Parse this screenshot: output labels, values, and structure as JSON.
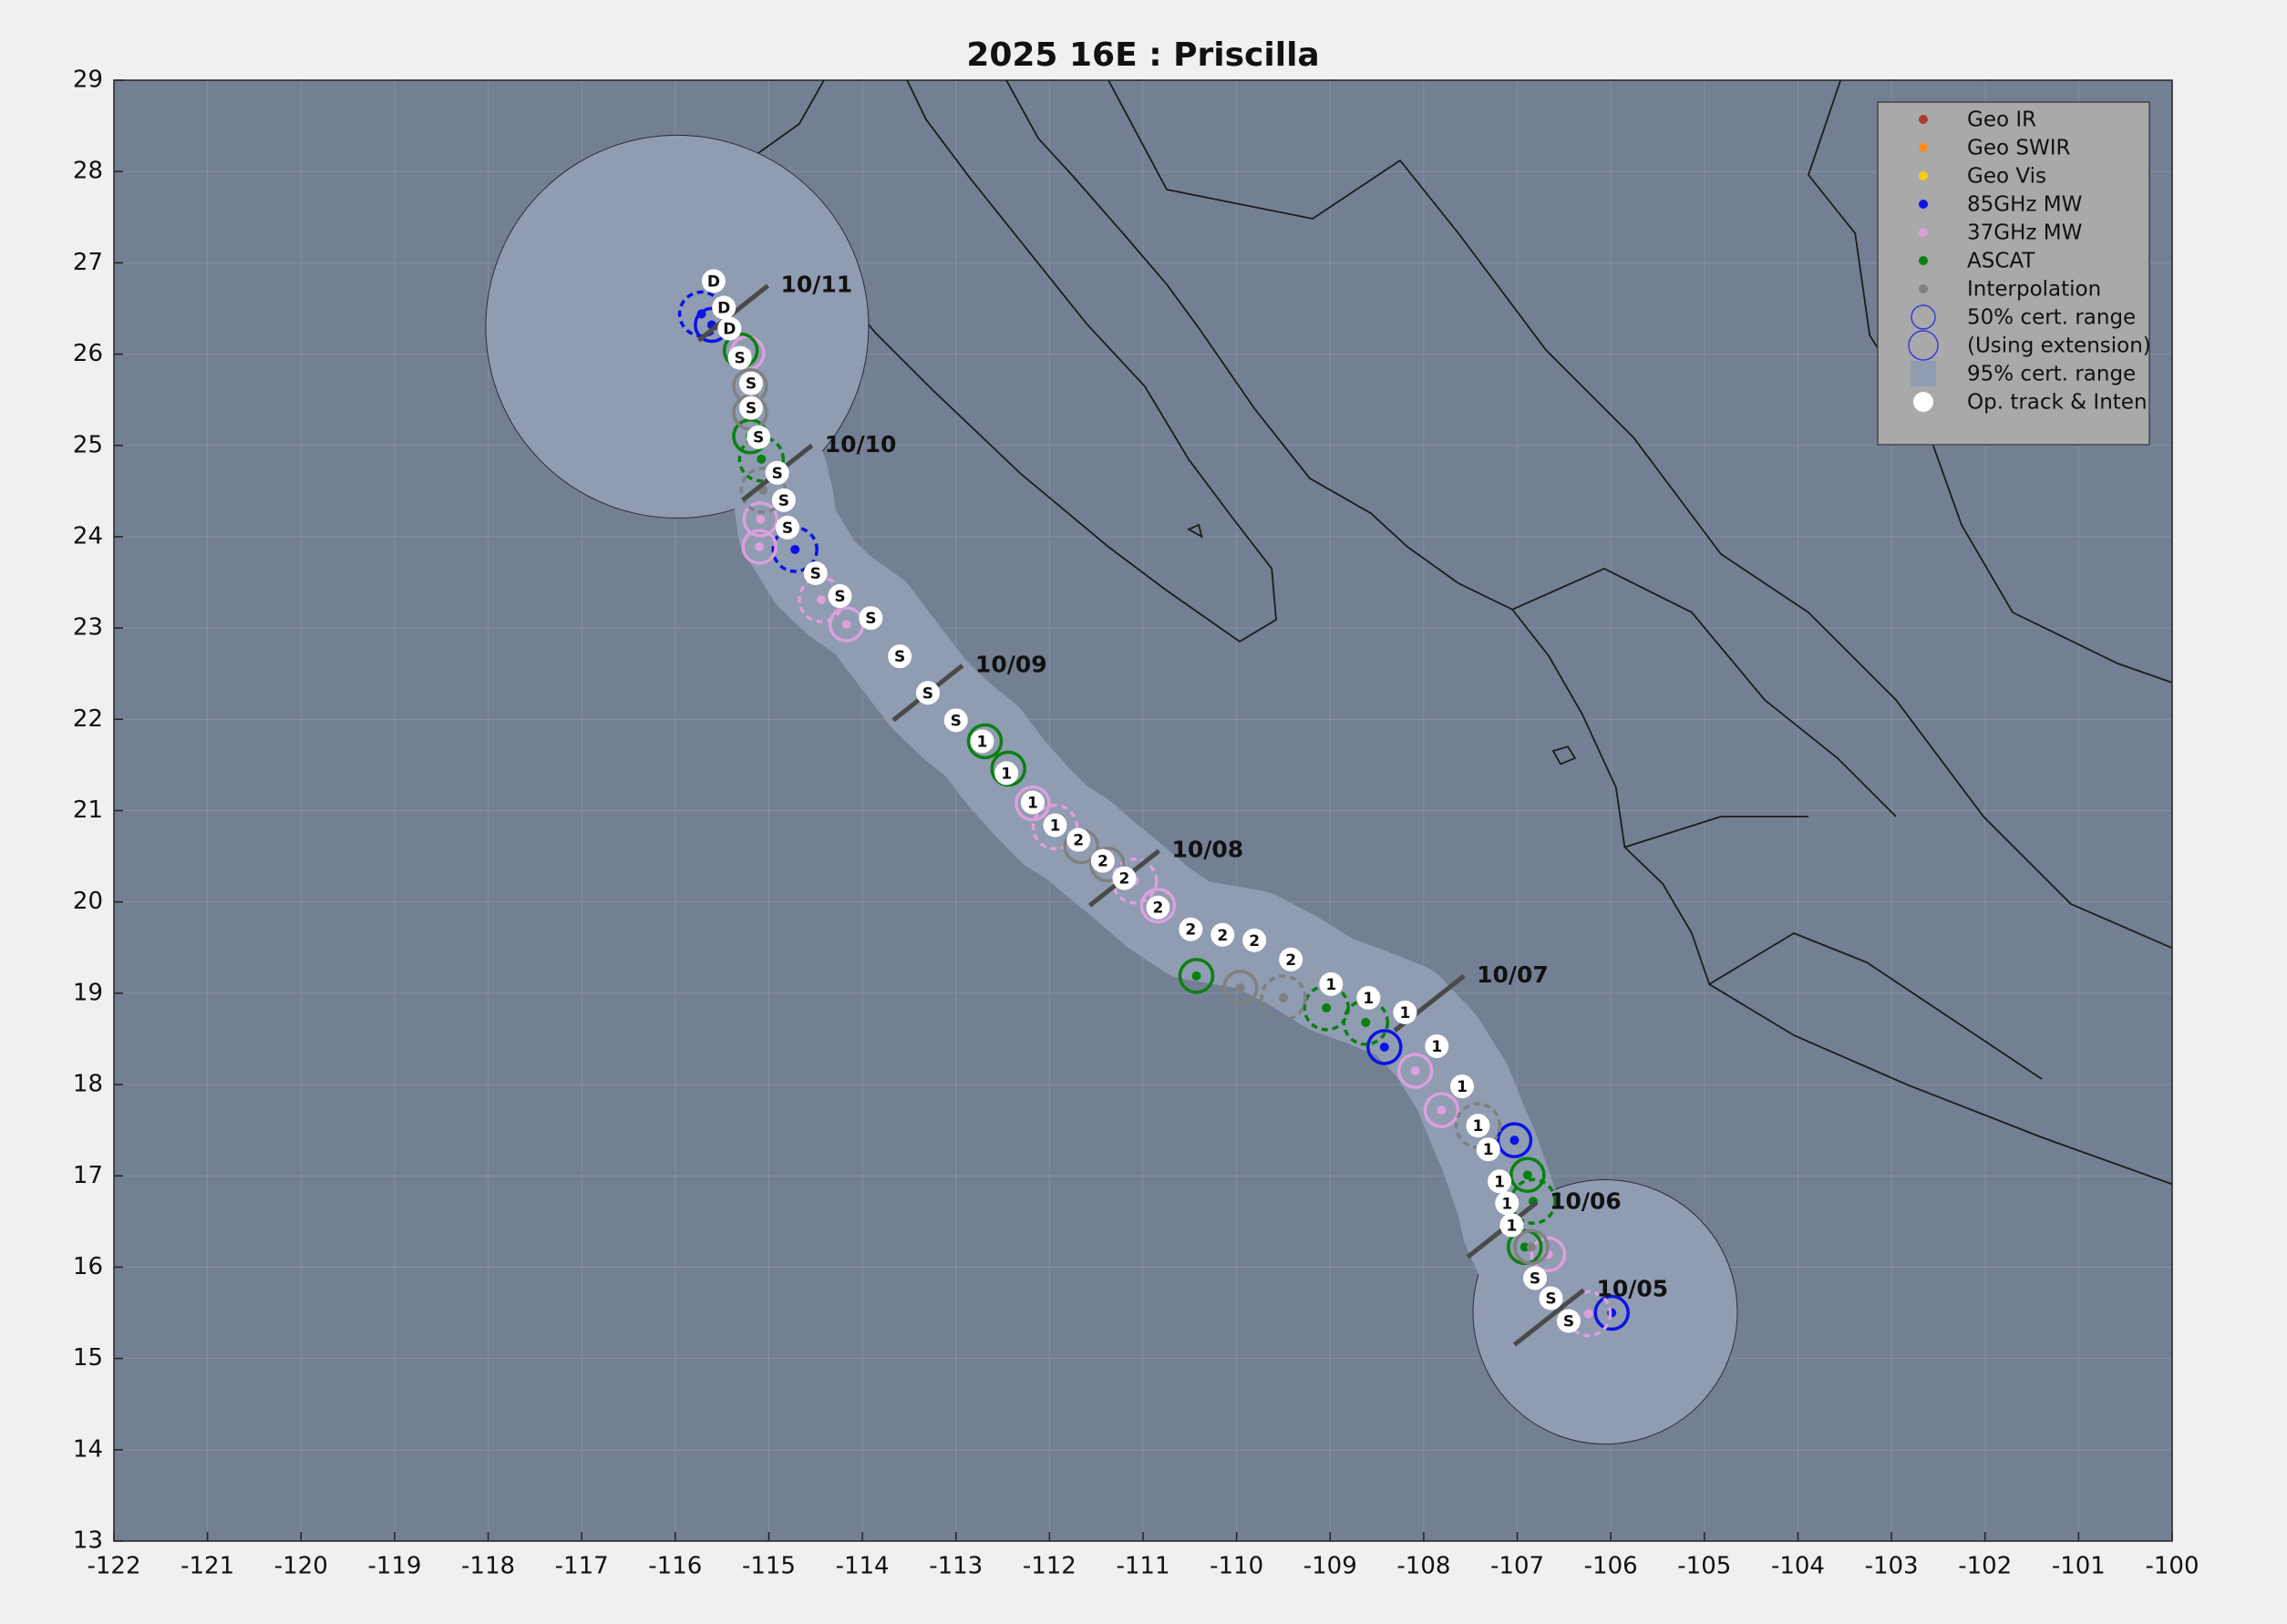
{
  "chart_data": {
    "type": "track",
    "title": "2025  16E :  Priscilla",
    "xlim": [
      -122,
      -100
    ],
    "ylim": [
      13,
      29
    ],
    "xticks": [
      -122,
      -121,
      -120,
      -119,
      -118,
      -117,
      -116,
      -115,
      -114,
      -113,
      -112,
      -111,
      -110,
      -109,
      -108,
      -107,
      -106,
      -105,
      -104,
      -103,
      -102,
      -101,
      -100
    ],
    "yticks": [
      13,
      14,
      15,
      16,
      17,
      18,
      19,
      20,
      21,
      22,
      23,
      24,
      25,
      26,
      27,
      28,
      29
    ],
    "grid": true,
    "legend_position": "upper right",
    "region_color": "#8f9cb2",
    "track_color": "#ffffff",
    "track": {
      "x": [
        -106.45,
        -106.64,
        -106.81,
        -107.06,
        -107.11,
        -107.19,
        -107.31,
        -107.42,
        -107.59,
        -107.86,
        -108.2,
        -108.59,
        -108.99,
        -109.42,
        -109.81,
        -110.15,
        -110.49,
        -110.84,
        -111.2,
        -111.43,
        -111.69,
        -111.94,
        -112.18,
        -112.46,
        -112.72,
        -113.0,
        -113.3,
        -113.6,
        -113.91,
        -114.24,
        -114.5,
        -114.8,
        -114.84,
        -114.91,
        -115.11,
        -115.19,
        -115.19,
        -115.31,
        -115.42,
        -115.48,
        -115.59
      ],
      "y": [
        15.41,
        15.66,
        15.88,
        16.46,
        16.7,
        16.94,
        17.29,
        17.55,
        17.98,
        18.42,
        18.79,
        18.95,
        19.1,
        19.37,
        19.58,
        19.64,
        19.7,
        19.94,
        20.26,
        20.45,
        20.68,
        20.84,
        21.09,
        21.41,
        21.76,
        21.99,
        22.29,
        22.69,
        23.11,
        23.35,
        23.6,
        24.1,
        24.4,
        24.7,
        25.09,
        25.41,
        25.68,
        25.96,
        26.28,
        26.51,
        26.8
      ],
      "labels": [
        "S",
        "S",
        "S",
        "1",
        "1",
        "1",
        "1",
        "1",
        "1",
        "1",
        "1",
        "1",
        "1",
        "2",
        "2",
        "2",
        "2",
        "2",
        "2",
        "2",
        "2",
        "1",
        "1",
        "1",
        "1",
        "S",
        "S",
        "S",
        "S",
        "S",
        "S",
        "S",
        "S",
        "S",
        "S",
        "S",
        "S",
        "S",
        "D",
        "D",
        "D"
      ]
    },
    "dates": [
      {
        "label": "10/05",
        "x": -106.66,
        "y": 15.45
      },
      {
        "label": "10/06",
        "x": -107.16,
        "y": 16.41
      },
      {
        "label": "10/07",
        "x": -107.94,
        "y": 18.89
      },
      {
        "label": "10/08",
        "x": -111.2,
        "y": 20.26
      },
      {
        "label": "10/09",
        "x": -113.3,
        "y": 22.29
      },
      {
        "label": "10/10",
        "x": -114.91,
        "y": 24.7
      },
      {
        "label": "10/11",
        "x": -115.38,
        "y": 26.45
      }
    ],
    "series": [
      {
        "name": "Geo IR",
        "color": "#b03a2e",
        "x": [],
        "y": []
      },
      {
        "name": "Geo SWIR",
        "color": "#ff8c1a",
        "x": [],
        "y": []
      },
      {
        "name": "Geo Vis",
        "color": "#f5d000",
        "x": [],
        "y": []
      },
      {
        "name": "85GHz MW",
        "color": "#0a14e6",
        "x": [
          -108.42,
          -114.72,
          -107.03,
          -105.99,
          -115.72,
          -115.61
        ],
        "y": [
          18.41,
          23.86,
          17.39,
          15.5,
          26.44,
          26.32
        ]
      },
      {
        "name": "37GHz MW",
        "color": "#dca0dc",
        "x": [
          -114.17,
          -114.44,
          -115.09,
          -115.1,
          -111.09,
          -110.84,
          -112.18,
          -111.94,
          -108.09,
          -107.81,
          -106.24,
          -115.23,
          -106.67
        ],
        "y": [
          23.04,
          23.31,
          24.19,
          23.89,
          20.23,
          19.96,
          21.08,
          20.82,
          18.15,
          17.72,
          15.49,
          26.01,
          16.14
        ]
      },
      {
        "name": "ASCAT",
        "color": "#0a8010",
        "x": [
          -110.43,
          -108.62,
          -112.69,
          -112.44,
          -115.08,
          -115.2,
          -115.3,
          -106.83,
          -106.89,
          -106.92,
          -109.04
        ],
        "y": [
          19.19,
          18.68,
          21.76,
          21.46,
          24.85,
          25.1,
          26.04,
          16.72,
          17.01,
          16.22,
          18.84
        ]
      },
      {
        "name": "Interpolation",
        "color": "#808080",
        "x": [
          -109.96,
          -109.5,
          -111.66,
          -111.38,
          -115.06,
          -115.2,
          -115.2,
          -107.42,
          -106.85
        ],
        "y": [
          19.06,
          18.95,
          20.61,
          20.41,
          24.51,
          25.36,
          25.65,
          17.55,
          16.22
        ]
      }
    ],
    "legend_extra": [
      {
        "name": "50% cert. range",
        "color": "#3b3bd6"
      },
      {
        "name": "(Using extension)",
        "color": "#3b3bd6"
      },
      {
        "name": "95% cert. range",
        "color": "#8f9cb2"
      },
      {
        "name": "Op. track & Inten",
        "color": "#ffffff"
      }
    ]
  }
}
